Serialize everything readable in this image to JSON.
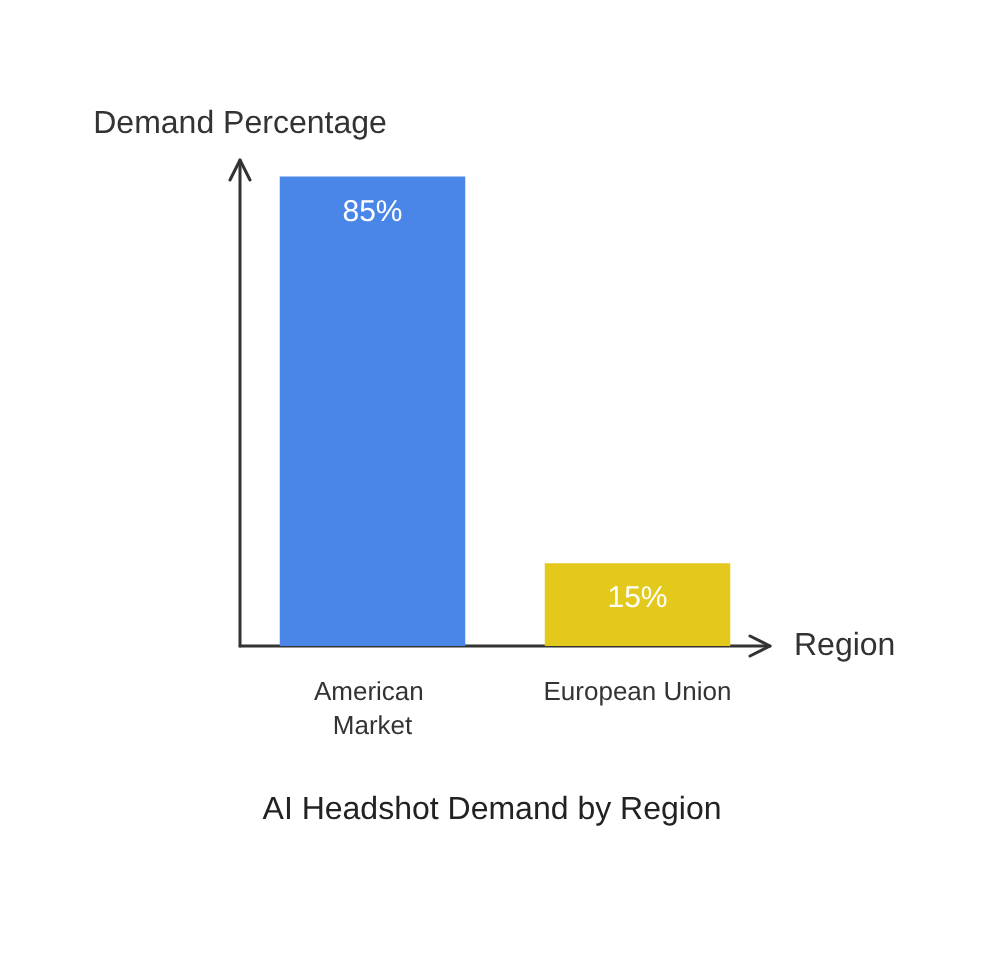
{
  "chart_data": {
    "type": "bar",
    "title": "AI Headshot Demand by Region",
    "xlabel": "Region",
    "ylabel": "Demand Percentage",
    "categories": [
      "American Market",
      "European Union"
    ],
    "values": [
      85,
      15
    ],
    "colors": [
      "#4a86e8",
      "#e2c91c"
    ],
    "value_labels": [
      "85%",
      "15%"
    ],
    "ylim": [
      0,
      88
    ],
    "tick_labels": "x",
    "grid": false
  }
}
